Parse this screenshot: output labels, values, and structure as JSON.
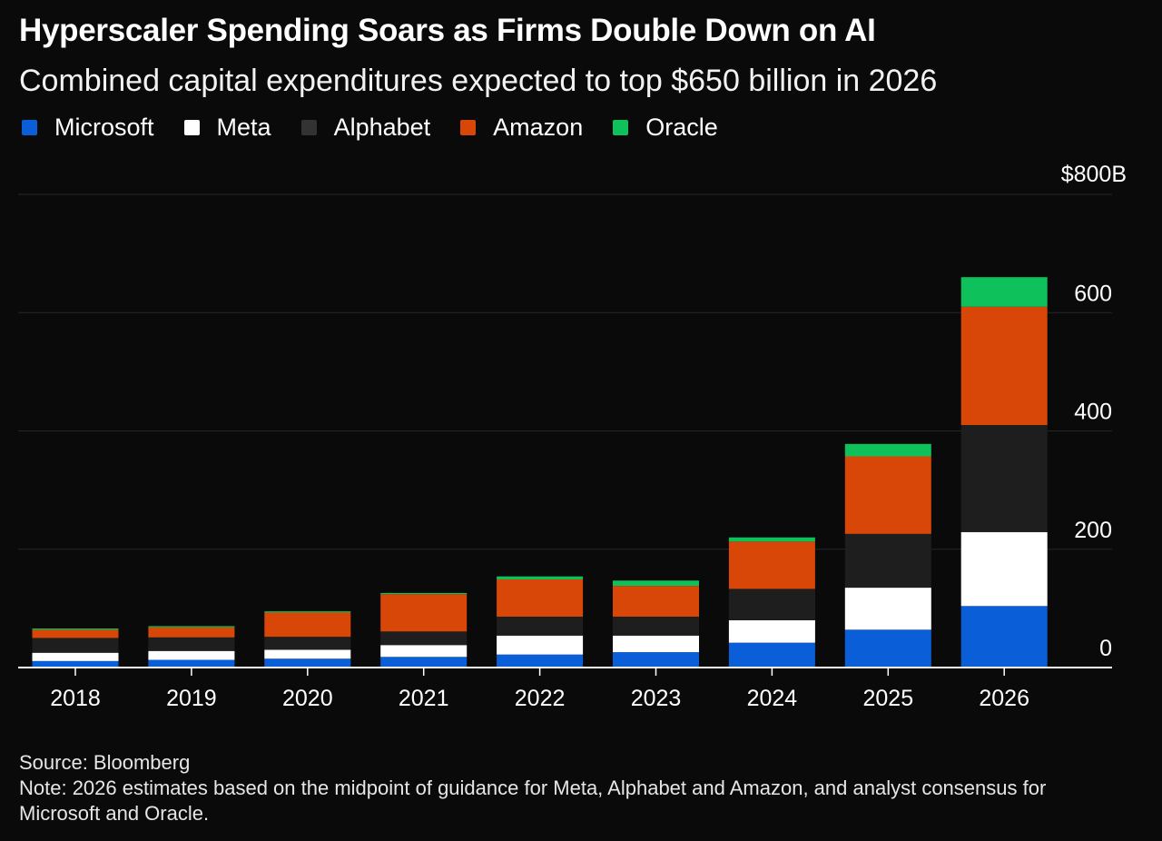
{
  "header": {
    "title": "Hyperscaler Spending Soars as Firms Double Down on AI",
    "subtitle": "Combined capital expenditures expected to top $650 billion in 2026"
  },
  "footer": {
    "source": "Source: Bloomberg",
    "note": "Note: 2026 estimates based on the midpoint of guidance for Meta, Alphabet and Amazon, and analyst consensus for Microsoft and Oracle."
  },
  "chart_data": {
    "type": "bar",
    "stacked": true,
    "title": "Hyperscaler Spending Soars as Firms Double Down on AI",
    "subtitle": "Combined capital expenditures expected to top $650 billion in 2026",
    "xlabel": "",
    "ylabel": "",
    "ylim": [
      0,
      800
    ],
    "yticks": [
      0,
      200,
      400,
      600,
      800
    ],
    "ytick_labels": [
      "0",
      "200",
      "400",
      "600",
      "$800B"
    ],
    "grid": true,
    "legend_position": "top-left",
    "categories": [
      "2018",
      "2019",
      "2020",
      "2021",
      "2022",
      "2023",
      "2024",
      "2025",
      "2026"
    ],
    "series": [
      {
        "name": "Microsoft",
        "color": "#0a5fd8",
        "values": [
          11,
          13,
          15,
          18,
          22,
          26,
          42,
          64,
          104
        ]
      },
      {
        "name": "Meta",
        "color": "#ffffff",
        "values": [
          14,
          15,
          15,
          20,
          32,
          28,
          38,
          71,
          125
        ]
      },
      {
        "name": "Alphabet",
        "color": "#1e1e1e",
        "values": [
          25,
          23,
          22,
          23,
          32,
          32,
          53,
          91,
          181
        ]
      },
      {
        "name": "Amazon",
        "color": "#d84708",
        "values": [
          14,
          17,
          41,
          63,
          63,
          52,
          80,
          131,
          200
        ]
      },
      {
        "name": "Oracle",
        "color": "#0fc15a",
        "values": [
          2,
          2,
          2,
          2,
          5,
          9,
          7,
          21,
          50
        ]
      }
    ]
  }
}
